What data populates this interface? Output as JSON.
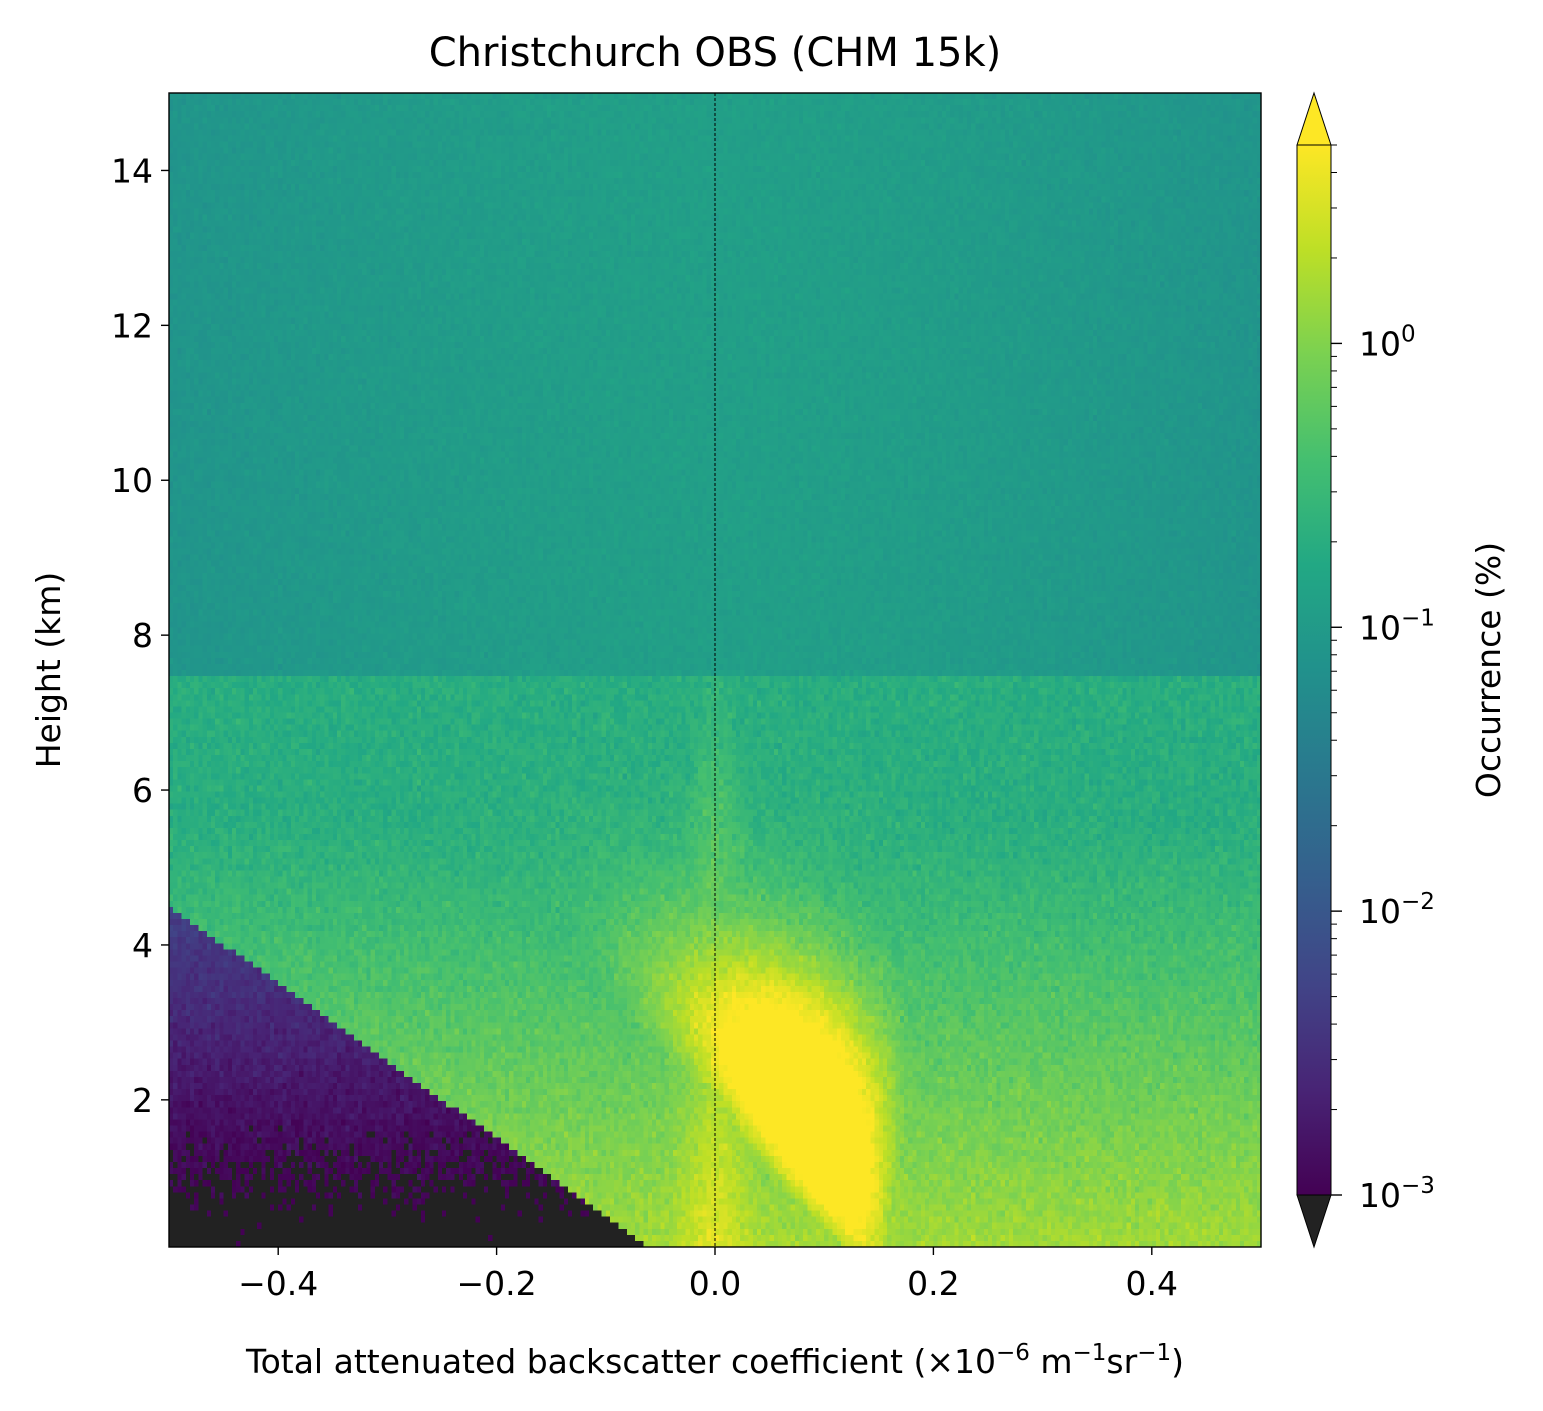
{
  "chart_data": {
    "type": "heatmap",
    "title": "Christchurch OBS (CHM 15k)",
    "xlabel": {
      "text": "Total attenuated backscatter coefficient (×10",
      "exp1": "−6",
      "unit_m": " m",
      "exp2": "−1",
      "unit_sr": "sr",
      "exp3": "−1",
      "close": ")"
    },
    "ylabel": "Height (km)",
    "xlim": [
      -0.5,
      0.5
    ],
    "ylim": [
      0.1,
      15
    ],
    "x_ticks": [
      {
        "value": -0.4,
        "label": "−0.4"
      },
      {
        "value": -0.2,
        "label": "−0.2"
      },
      {
        "value": 0.0,
        "label": "0.0"
      },
      {
        "value": 0.2,
        "label": "0.2"
      },
      {
        "value": 0.4,
        "label": "0.4"
      }
    ],
    "y_ticks": [
      {
        "value": 2,
        "label": "2"
      },
      {
        "value": 4,
        "label": "4"
      },
      {
        "value": 6,
        "label": "6"
      },
      {
        "value": 8,
        "label": "8"
      },
      {
        "value": 10,
        "label": "10"
      },
      {
        "value": 12,
        "label": "12"
      },
      {
        "value": 14,
        "label": "14"
      }
    ],
    "vertical_reference_line": {
      "x": 0.0,
      "style": "dashed",
      "color": "#000000"
    },
    "colorbar": {
      "label": "Occurrence (%)",
      "scale": "log",
      "range": [
        0.001,
        5
      ],
      "colormap": "viridis",
      "extend": "both",
      "under_color": "#222222",
      "ticks": [
        {
          "value": 1,
          "base": "10",
          "exp": "0"
        },
        {
          "value": 0.1,
          "base": "10",
          "exp": "−1"
        },
        {
          "value": 0.01,
          "base": "10",
          "exp": "−2"
        },
        {
          "value": 0.001,
          "base": "10",
          "exp": "−3"
        }
      ]
    },
    "distribution_notes": {
      "peak_occurrence_pct": 3.5,
      "peak_location": {
        "x": 0.09,
        "height_km": 1.5
      },
      "upper_background_pct": 0.12
    }
  }
}
